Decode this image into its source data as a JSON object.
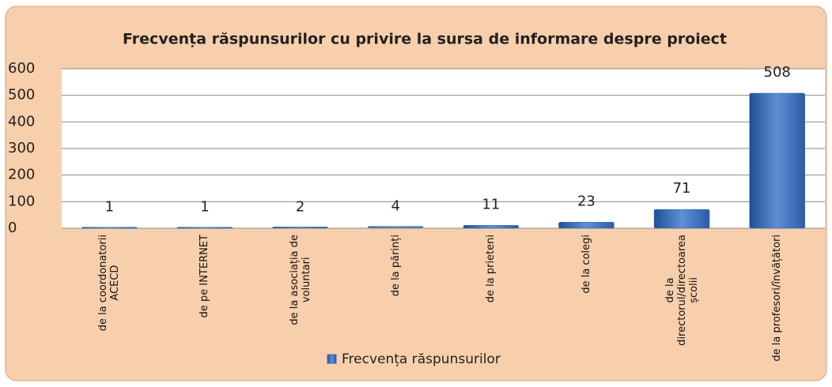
{
  "chart_data": {
    "type": "bar",
    "title": "Frecvența răspunsurilor cu privire la sursa de informare despre proiect",
    "categories": [
      "de la coordonatorii\nACECD",
      "de pe INTERNET",
      "de la asociația de\nvoluntari",
      "de la părinți",
      "de la prieteni",
      "de la colegi",
      "de la\ndirectorul/directoarea\nșcolii",
      "de la profesori/învățători"
    ],
    "series": [
      {
        "name": "Frecvența răspunsurilor",
        "color": "#3a6fb5",
        "values": [
          1,
          1,
          2,
          4,
          11,
          23,
          71,
          508
        ]
      }
    ],
    "ylim": [
      0,
      600
    ],
    "yticks": [
      0,
      100,
      200,
      300,
      400,
      500,
      600
    ],
    "grid": true,
    "legend": "bottom"
  }
}
